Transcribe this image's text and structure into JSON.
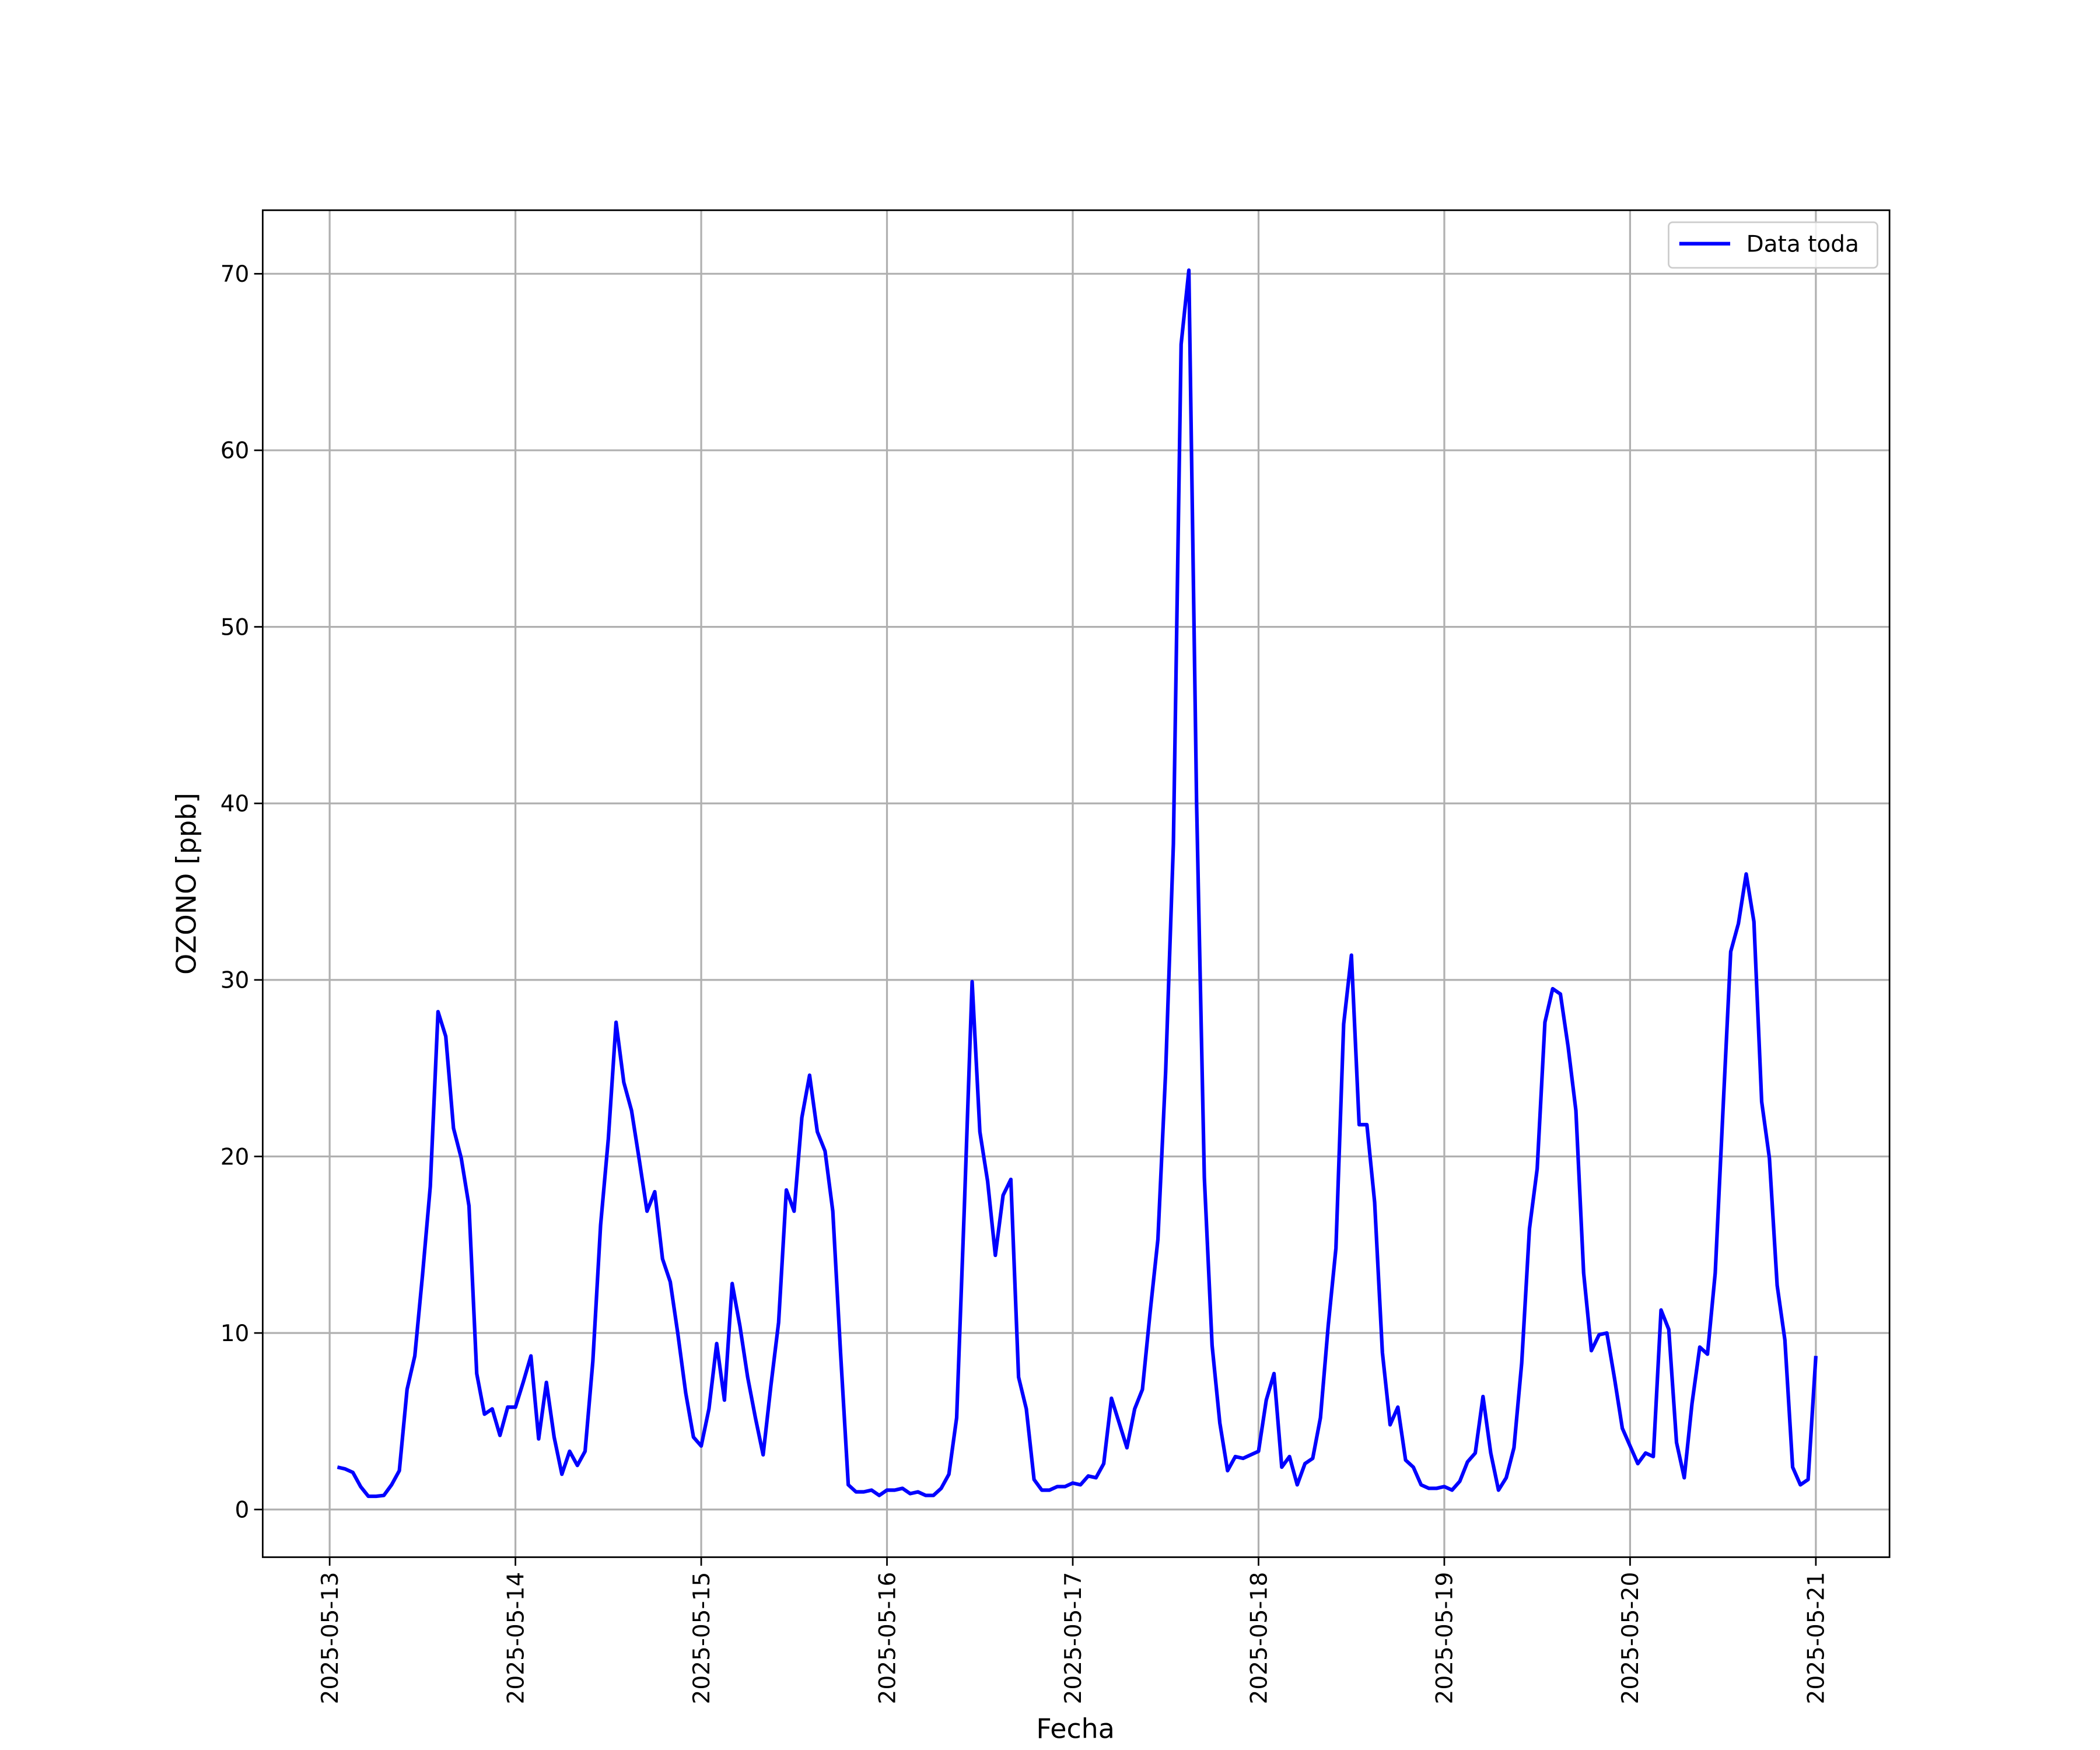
{
  "chart_data": {
    "type": "line",
    "xlabel": "Fecha",
    "ylabel": "OZONO [ppb]",
    "x": [
      "2025-05-13 01:00",
      "2025-05-13 02:00",
      "2025-05-13 03:00",
      "2025-05-13 04:00",
      "2025-05-13 05:00",
      "2025-05-13 06:00",
      "2025-05-13 07:00",
      "2025-05-13 08:00",
      "2025-05-13 09:00",
      "2025-05-13 10:00",
      "2025-05-13 11:00",
      "2025-05-13 12:00",
      "2025-05-13 13:00",
      "2025-05-13 14:00",
      "2025-05-13 15:00",
      "2025-05-13 16:00",
      "2025-05-13 17:00",
      "2025-05-13 18:00",
      "2025-05-13 19:00",
      "2025-05-13 20:00",
      "2025-05-13 21:00",
      "2025-05-13 22:00",
      "2025-05-13 23:00",
      "2025-05-14 00:00",
      "2025-05-14 01:00",
      "2025-05-14 02:00",
      "2025-05-14 03:00",
      "2025-05-14 04:00",
      "2025-05-14 05:00",
      "2025-05-14 06:00",
      "2025-05-14 07:00",
      "2025-05-14 08:00",
      "2025-05-14 09:00",
      "2025-05-14 10:00",
      "2025-05-14 11:00",
      "2025-05-14 12:00",
      "2025-05-14 13:00",
      "2025-05-14 14:00",
      "2025-05-14 15:00",
      "2025-05-14 16:00",
      "2025-05-14 17:00",
      "2025-05-14 18:00",
      "2025-05-14 19:00",
      "2025-05-14 20:00",
      "2025-05-14 21:00",
      "2025-05-14 22:00",
      "2025-05-14 23:00",
      "2025-05-15 00:00",
      "2025-05-15 01:00",
      "2025-05-15 02:00",
      "2025-05-15 03:00",
      "2025-05-15 04:00",
      "2025-05-15 05:00",
      "2025-05-15 06:00",
      "2025-05-15 07:00",
      "2025-05-15 08:00",
      "2025-05-15 09:00",
      "2025-05-15 10:00",
      "2025-05-15 11:00",
      "2025-05-15 12:00",
      "2025-05-15 13:00",
      "2025-05-15 14:00",
      "2025-05-15 15:00",
      "2025-05-15 16:00",
      "2025-05-15 17:00",
      "2025-05-15 18:00",
      "2025-05-15 19:00",
      "2025-05-15 20:00",
      "2025-05-15 21:00",
      "2025-05-15 22:00",
      "2025-05-15 23:00",
      "2025-05-16 00:00",
      "2025-05-16 01:00",
      "2025-05-16 02:00",
      "2025-05-16 03:00",
      "2025-05-16 04:00",
      "2025-05-16 05:00",
      "2025-05-16 06:00",
      "2025-05-16 07:00",
      "2025-05-16 08:00",
      "2025-05-16 09:00",
      "2025-05-16 10:00",
      "2025-05-16 11:00",
      "2025-05-16 12:00",
      "2025-05-16 13:00",
      "2025-05-16 14:00",
      "2025-05-16 15:00",
      "2025-05-16 16:00",
      "2025-05-16 17:00",
      "2025-05-16 18:00",
      "2025-05-16 19:00",
      "2025-05-16 20:00",
      "2025-05-16 21:00",
      "2025-05-16 22:00",
      "2025-05-16 23:00",
      "2025-05-17 00:00",
      "2025-05-17 01:00",
      "2025-05-17 02:00",
      "2025-05-17 03:00",
      "2025-05-17 04:00",
      "2025-05-17 05:00",
      "2025-05-17 06:00",
      "2025-05-17 07:00",
      "2025-05-17 08:00",
      "2025-05-17 09:00",
      "2025-05-17 10:00",
      "2025-05-17 11:00",
      "2025-05-17 12:00",
      "2025-05-17 13:00",
      "2025-05-17 14:00",
      "2025-05-17 15:00",
      "2025-05-17 16:00",
      "2025-05-17 17:00",
      "2025-05-17 18:00",
      "2025-05-17 19:00",
      "2025-05-17 20:00",
      "2025-05-17 21:00",
      "2025-05-17 22:00",
      "2025-05-17 23:00",
      "2025-05-18 00:00",
      "2025-05-18 01:00",
      "2025-05-18 02:00",
      "2025-05-18 03:00",
      "2025-05-18 04:00",
      "2025-05-18 05:00",
      "2025-05-18 06:00",
      "2025-05-18 07:00",
      "2025-05-18 08:00",
      "2025-05-18 09:00",
      "2025-05-18 10:00",
      "2025-05-18 11:00",
      "2025-05-18 12:00",
      "2025-05-18 13:00",
      "2025-05-18 14:00",
      "2025-05-18 15:00",
      "2025-05-18 16:00",
      "2025-05-18 17:00",
      "2025-05-18 18:00",
      "2025-05-18 19:00",
      "2025-05-18 20:00",
      "2025-05-18 21:00",
      "2025-05-18 22:00",
      "2025-05-18 23:00",
      "2025-05-19 00:00",
      "2025-05-19 01:00",
      "2025-05-19 02:00",
      "2025-05-19 03:00",
      "2025-05-19 04:00",
      "2025-05-19 05:00",
      "2025-05-19 06:00",
      "2025-05-19 07:00",
      "2025-05-19 08:00",
      "2025-05-19 09:00",
      "2025-05-19 10:00",
      "2025-05-19 11:00",
      "2025-05-19 12:00",
      "2025-05-19 13:00",
      "2025-05-19 14:00",
      "2025-05-19 15:00",
      "2025-05-19 16:00",
      "2025-05-19 17:00",
      "2025-05-19 18:00",
      "2025-05-19 19:00",
      "2025-05-19 20:00",
      "2025-05-19 21:00",
      "2025-05-19 22:00",
      "2025-05-19 23:00",
      "2025-05-20 00:00",
      "2025-05-20 01:00",
      "2025-05-20 02:00",
      "2025-05-20 03:00",
      "2025-05-20 04:00",
      "2025-05-20 05:00",
      "2025-05-20 06:00",
      "2025-05-20 07:00",
      "2025-05-20 08:00",
      "2025-05-20 09:00",
      "2025-05-20 10:00",
      "2025-05-20 11:00",
      "2025-05-20 12:00",
      "2025-05-20 13:00",
      "2025-05-20 14:00",
      "2025-05-20 15:00",
      "2025-05-20 16:00",
      "2025-05-20 17:00",
      "2025-05-20 18:00",
      "2025-05-20 19:00",
      "2025-05-20 20:00",
      "2025-05-20 21:00",
      "2025-05-20 22:00",
      "2025-05-20 23:00",
      "2025-05-21 00:00"
    ],
    "series": [
      {
        "name": "Data toda",
        "color": "#0000ff",
        "values": [
          2.4,
          2.3,
          2.1,
          1.3,
          0.75,
          0.75,
          0.8,
          1.4,
          2.2,
          6.8,
          8.7,
          13.3,
          18.3,
          28.2,
          26.8,
          21.6,
          19.9,
          17.2,
          7.7,
          5.4,
          5.7,
          4.2,
          5.8,
          5.8,
          7.2,
          8.7,
          4.0,
          7.2,
          4.1,
          2.0,
          3.3,
          2.5,
          3.3,
          8.4,
          16.1,
          21.0,
          27.6,
          24.2,
          22.6,
          19.8,
          16.9,
          18.0,
          14.2,
          12.9,
          9.9,
          6.6,
          4.1,
          3.6,
          5.7,
          9.4,
          6.2,
          12.8,
          10.4,
          7.5,
          5.2,
          3.1,
          7.0,
          10.6,
          18.1,
          16.9,
          22.2,
          24.6,
          21.4,
          20.3,
          16.9,
          8.9,
          1.4,
          1.0,
          1.0,
          1.1,
          0.8,
          1.1,
          1.1,
          1.2,
          0.9,
          1.0,
          0.8,
          0.8,
          1.2,
          2.0,
          5.2,
          17.2,
          29.9,
          21.4,
          18.6,
          14.4,
          17.8,
          18.7,
          7.5,
          5.7,
          1.7,
          1.1,
          1.1,
          1.3,
          1.3,
          1.5,
          1.4,
          1.9,
          1.8,
          2.6,
          6.3,
          4.9,
          3.5,
          5.7,
          6.8,
          11.2,
          15.3,
          24.8,
          37.7,
          66.0,
          70.2,
          40.0,
          18.8,
          9.3,
          4.9,
          2.2,
          3.0,
          2.9,
          3.1,
          3.3,
          6.2,
          7.7,
          2.4,
          3.0,
          1.4,
          2.6,
          2.9,
          5.2,
          10.4,
          14.8,
          27.5,
          31.4,
          21.8,
          21.8,
          17.4,
          8.9,
          4.8,
          5.8,
          2.8,
          2.4,
          1.4,
          1.2,
          1.2,
          1.3,
          1.1,
          1.6,
          2.7,
          3.2,
          6.4,
          3.2,
          1.1,
          1.8,
          3.5,
          8.3,
          15.9,
          19.3,
          27.6,
          29.5,
          29.2,
          26.2,
          22.6,
          13.4,
          9.0,
          9.9,
          10.0,
          7.4,
          4.6,
          3.6,
          2.6,
          3.2,
          3.0,
          11.3,
          10.2,
          3.8,
          1.8,
          6.0,
          9.2,
          8.8,
          13.4,
          22.6,
          31.6,
          33.2,
          36.0,
          33.3,
          23.1,
          19.9,
          12.7,
          9.6,
          2.4,
          1.4,
          1.7,
          8.7
        ]
      }
    ],
    "xlim": [
      "2025-05-12 15:21",
      "2025-05-21 09:31"
    ],
    "xticks": [
      "2025-05-13",
      "2025-05-14",
      "2025-05-15",
      "2025-05-16",
      "2025-05-17",
      "2025-05-18",
      "2025-05-19",
      "2025-05-20",
      "2025-05-21"
    ],
    "ylim": [
      -2.7,
      73.6
    ],
    "yticks": [
      0,
      10,
      20,
      30,
      40,
      50,
      60,
      70
    ],
    "grid": true,
    "legend": "upper right"
  }
}
